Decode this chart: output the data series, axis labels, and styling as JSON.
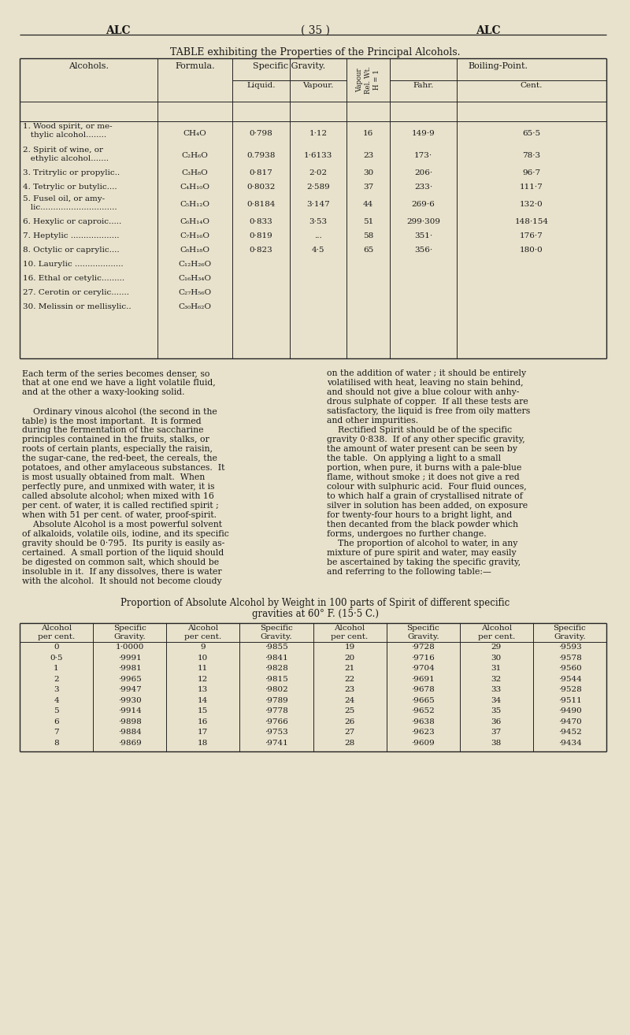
{
  "bg_color": "#e8e2cc",
  "text_color": "#1a1a1a",
  "page_header_left": "ALC",
  "page_header_center": "( 35 )",
  "page_header_right": "ALC",
  "table1_title_plain": "TABLE exhibiting the Properties of the Principal Alcohols.",
  "table1_rows": [
    [
      "1. Wood spirit, or me-\n   thylic alcohol........",
      "CH₄O",
      "0·798",
      "1·12",
      "16",
      "149·9",
      "65·5"
    ],
    [
      "2. Spirit of wine, or\n   ethylic alcohol.......",
      "C₂H₆O",
      "0.7938",
      "1·6133",
      "23",
      "173·",
      "78·3"
    ],
    [
      "3. Tritrylic or propylic..",
      "C₃H₈O",
      "0·817",
      "2·02",
      "30",
      "206·",
      "96·7"
    ],
    [
      "4. Tetrylic or butylic....",
      "C₄H₁₀O",
      "0·8032",
      "2·589",
      "37",
      "233·",
      "111·7"
    ],
    [
      "5. Fusel oil, or amy-\n   lic..............................",
      "C₅H₁₂O",
      "0·8184",
      "3·147",
      "44",
      "269·6",
      "132·0"
    ],
    [
      "6. Hexylic or caproic.....",
      "C₆H₁₄O",
      "0·833",
      "3·53",
      "51",
      "299·309",
      "148·154"
    ],
    [
      "7. Heptylic ...................",
      "C₇H₁₆O",
      "0·819",
      "...",
      "58",
      "351·",
      "176·7"
    ],
    [
      "8. Octylic or caprylic....",
      "C₈H₁₈O",
      "0·823",
      "4·5",
      "65",
      "356·",
      "180·0"
    ],
    [
      "10. Laurylic ...................",
      "C₁₂H₂₆O",
      "",
      "",
      "",
      "",
      ""
    ],
    [
      "16. Ethal or cetylic.........",
      "C₁₆H₃₄O",
      "",
      "",
      "",
      "",
      ""
    ],
    [
      "27. Cerotin or cerylic.......",
      "C₂₇H₅₆O",
      "",
      "",
      "",
      "",
      ""
    ],
    [
      "30. Melissin or mellisylic..",
      "C₃₀H₆₂O",
      "",
      "",
      "",
      "",
      ""
    ]
  ],
  "body_text_left": [
    "Each term of the series becomes denser, so",
    "that at one end we have a light volatile fluid,",
    "and at the other a waxy-looking solid.",
    "",
    "    Ordinary vinous alcohol (the second in the",
    "table) is the most important.  It is formed",
    "during the fermentation of the saccharine",
    "principles contained in the fruits, stalks, or",
    "roots of certain plants, especially the raisin,",
    "the sugar-cane, the red-beet, the cereals, the",
    "potatoes, and other amylaceous substances.  It",
    "is most usually obtained from malt.  When",
    "perfectly pure, and unmixed with water, it is",
    "called absolute alcohol; when mixed with 16",
    "per cent. of water, it is called rectified spirit ;",
    "when with 51 per cent. of water, proof-spirit.",
    "    Absolute Alcohol is a most powerful solvent",
    "of alkaloids, volatile oils, iodine, and its specific",
    "gravity should be 0·795.  Its purity is easily as-",
    "certained.  A small portion of the liquid should",
    "be digested on common salt, which should be",
    "insoluble in it.  If any dissolves, there is water",
    "with the alcohol.  It should not become cloudy"
  ],
  "body_text_right": [
    "on the addition of water ; it should be entirely",
    "volatilised with heat, leaving no stain behind,",
    "and should not give a blue colour with anhy-",
    "drous sulphate of copper.  If all these tests are",
    "satisfactory, the liquid is free from oily matters",
    "and other impurities.",
    "    Rectified Spirit should be of the specific",
    "gravity 0·838.  If of any other specific gravity,",
    "the amount of water present can be seen by",
    "the table.  On applying a light to a small",
    "portion, when pure, it burns with a pale-blue",
    "flame, without smoke ; it does not give a red",
    "colour with sulphuric acid.  Four fluid ounces,",
    "to which half a grain of crystallised nitrate of",
    "silver in solution has been added, on exposure",
    "for twenty-four hours to a bright light, and",
    "then decanted from the black powder which",
    "forms, undergoes no further change.",
    "    The proportion of alcohol to water, in any",
    "mixture of pure spirit and water, may easily",
    "be ascertained by taking the specific gravity,",
    "and referring to the following table:—"
  ],
  "table2_title_line1": "Proportion of Absolute Alcohol by Weight in 100 parts of Spirit of different specific",
  "table2_title_line2": "gravities at 60° F. (15·5 C.)",
  "table2_col_headers": [
    "Alcohol\nper cent.",
    "Specific\nGravity.",
    "Alcohol\nper cent.",
    "Specific\nGravity.",
    "Alcohol\nper cent.",
    "Specific\nGravity.",
    "Alcohol\nper cent.",
    "Specific\nGravity."
  ],
  "table2_rows": [
    [
      "0",
      "1·0000",
      "9",
      "·9855",
      "19",
      "·9728",
      "29",
      "·9593"
    ],
    [
      "0·5",
      "·9991",
      "10",
      "·9841",
      "20",
      "·9716",
      "30",
      "·9578"
    ],
    [
      "1",
      "·9981",
      "11",
      "·9828",
      "21",
      "·9704",
      "31",
      "·9560"
    ],
    [
      "2",
      "·9965",
      "12",
      "·9815",
      "22",
      "·9691",
      "32",
      "·9544"
    ],
    [
      "3",
      "·9947",
      "13",
      "·9802",
      "23",
      "·9678",
      "33",
      "·9528"
    ],
    [
      "4",
      "·9930",
      "14",
      "·9789",
      "24",
      "·9665",
      "34",
      "·9511"
    ],
    [
      "5",
      "·9914",
      "15",
      "·9778",
      "25",
      "·9652",
      "35",
      "·9490"
    ],
    [
      "6",
      "·9898",
      "16",
      "·9766",
      "26",
      "·9638",
      "36",
      "·9470"
    ],
    [
      "7",
      "·9884",
      "17",
      "·9753",
      "27",
      "·9623",
      "37",
      "·9452"
    ],
    [
      "8",
      "·9869",
      "18",
      "·9741",
      "28",
      "·9609",
      "38",
      "·9434"
    ]
  ]
}
